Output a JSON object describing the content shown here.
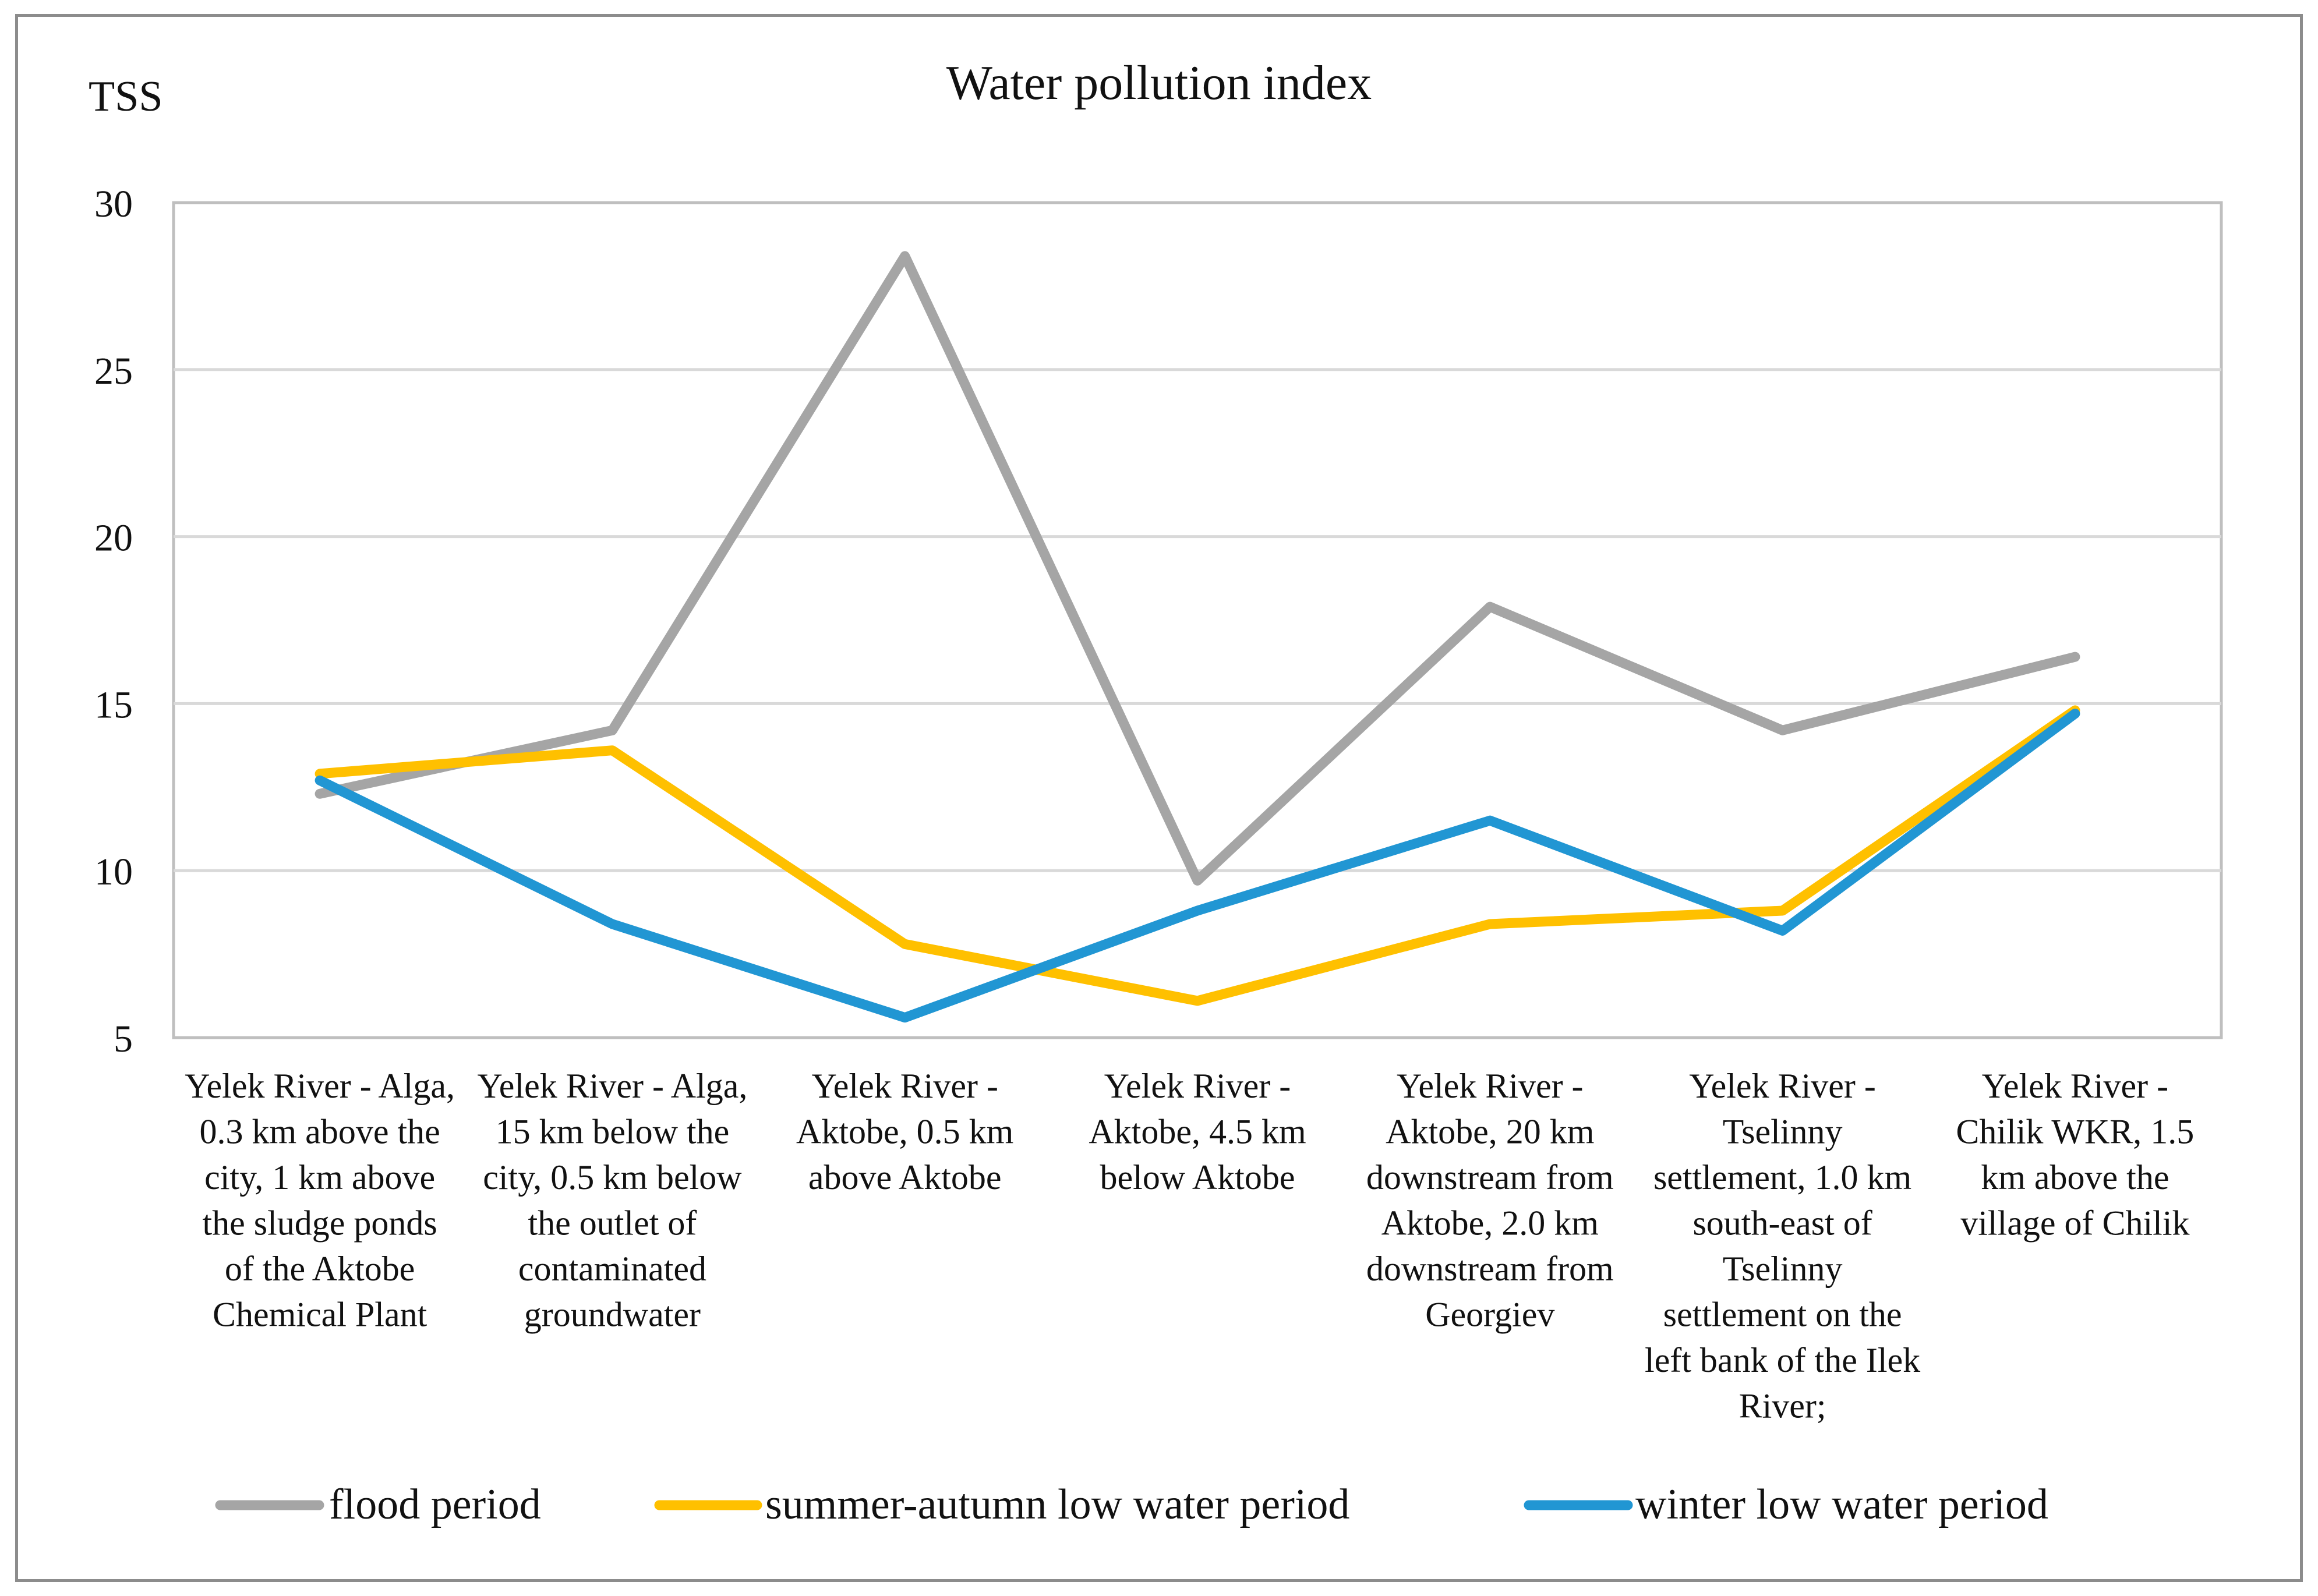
{
  "chart_data": {
    "type": "line",
    "title": "Water pollution index",
    "ylabel": "TSS",
    "xlabel": "",
    "ylim": [
      5,
      30
    ],
    "yticks": [
      "5",
      "10",
      "15",
      "20",
      "25",
      "30"
    ],
    "grid": true,
    "legend_position": "bottom",
    "categories": [
      [
        "Yelek River - Alga,",
        "0.3 km above the",
        "city, 1 km above",
        "the sludge ponds",
        "of the Aktobe",
        "Chemical Plant"
      ],
      [
        "Yelek River - Alga,",
        "15 km below the",
        "city, 0.5 km below",
        "the outlet of",
        "contaminated",
        "groundwater"
      ],
      [
        "Yelek River -",
        "Aktobe, 0.5 km",
        "above Aktobe"
      ],
      [
        "Yelek River -",
        "Aktobe, 4.5 km",
        "below Aktobe"
      ],
      [
        "Yelek River -",
        "Aktobe, 20 km",
        "downstream from",
        "Aktobe, 2.0 km",
        "downstream from",
        "Georgiev"
      ],
      [
        "Yelek River -",
        "Tselinny",
        "settlement, 1.0 km",
        "south-east of",
        "Tselinny",
        "settlement on the",
        "left bank of the Ilek",
        "River;"
      ],
      [
        "Yelek River -",
        "Chilik WKR, 1.5",
        "km above the",
        "village of Chilik"
      ]
    ],
    "series": [
      {
        "name": "flood period",
        "color": "#a5a5a5",
        "values": [
          12.3,
          14.2,
          28.4,
          9.7,
          17.9,
          14.2,
          16.4
        ]
      },
      {
        "name": "summer-autumn low water period",
        "color": "#ffc000",
        "values": [
          12.9,
          13.6,
          7.8,
          6.1,
          8.4,
          8.8,
          14.8
        ]
      },
      {
        "name": "winter low water period",
        "color": "#2196d3",
        "values": [
          12.7,
          8.4,
          5.6,
          8.8,
          11.5,
          8.2,
          14.7
        ]
      }
    ]
  }
}
